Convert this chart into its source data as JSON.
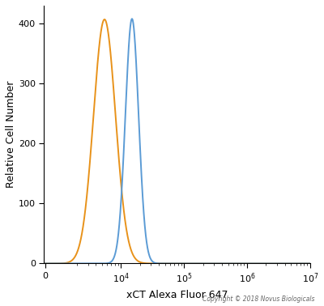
{
  "title": "",
  "xlabel": "xCT Alexa Fluor 647",
  "ylabel": "Relative Cell Number",
  "copyright": "Copyright © 2018 Novus Biologicals",
  "orange_peak": 5500,
  "orange_sigma_log": 0.175,
  "orange_amplitude": 407,
  "blue_peak": 15000,
  "blue_sigma_log": 0.105,
  "blue_amplitude": 408,
  "orange_color": "#E8921A",
  "blue_color": "#5B9BD5",
  "ylim": [
    0,
    430
  ],
  "yticks": [
    0,
    100,
    200,
    300,
    400
  ],
  "background_color": "#FFFFFF",
  "line_width": 1.4,
  "linthresh": 1000,
  "linscale": 0.18
}
